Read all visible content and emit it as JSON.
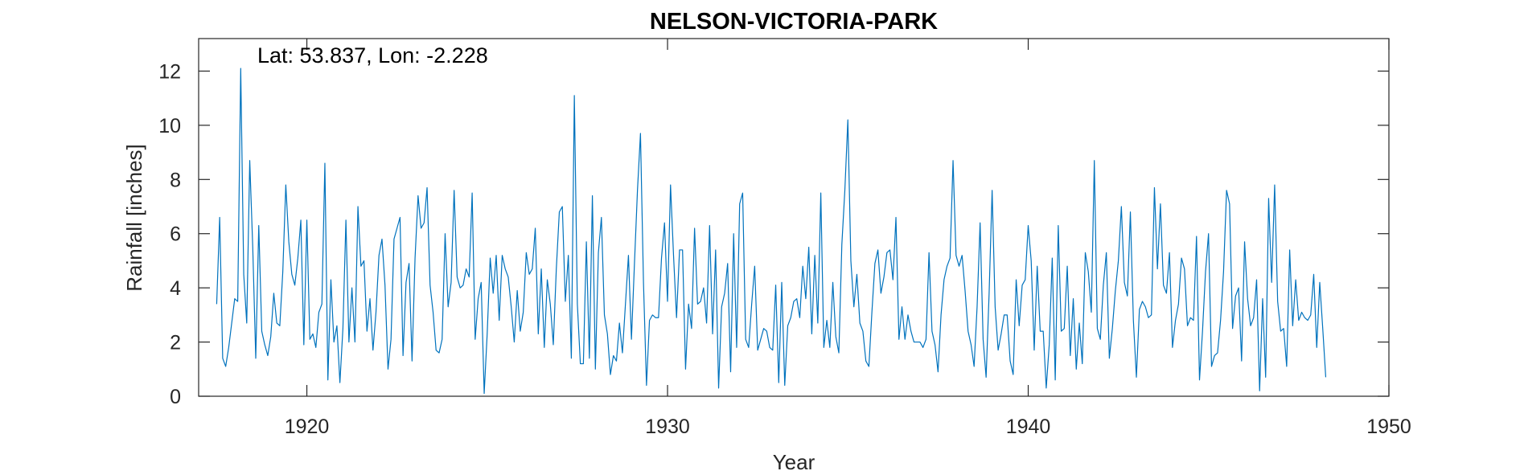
{
  "chart_data": {
    "type": "line",
    "title": "NELSON-VICTORIA-PARK",
    "annotation": "Lat: 53.837, Lon: -2.228",
    "xlabel": "Year",
    "ylabel": "Rainfall [inches]",
    "xlim": [
      1917,
      1950
    ],
    "ylim": [
      0,
      13.2
    ],
    "xticks": [
      1920,
      1930,
      1940,
      1950
    ],
    "yticks": [
      0,
      2,
      4,
      6,
      8,
      10,
      12
    ],
    "grid": false,
    "line_color": "#0072BD",
    "series": [
      {
        "x_start": 1917.5,
        "x_step": 0.08333,
        "values": [
          3.4,
          6.6,
          1.4,
          1.1,
          1.8,
          2.7,
          3.6,
          3.5,
          12.1,
          4.5,
          2.7,
          8.7,
          5.5,
          1.4,
          6.3,
          2.4,
          1.9,
          1.5,
          2.2,
          3.8,
          2.7,
          2.6,
          4.6,
          7.8,
          5.7,
          4.5,
          4.1,
          5.1,
          6.5,
          1.9,
          6.5,
          2.1,
          2.3,
          1.8,
          3.1,
          3.4,
          8.6,
          0.6,
          4.3,
          2.0,
          2.6,
          0.5,
          2.5,
          6.5,
          2.0,
          4.0,
          2.0,
          7.0,
          4.8,
          5.0,
          2.4,
          3.6,
          1.7,
          3.1,
          5.2,
          5.8,
          4.1,
          1.0,
          2.1,
          5.8,
          6.2,
          6.6,
          1.5,
          4.2,
          4.9,
          1.3,
          5.1,
          7.4,
          6.2,
          6.4,
          7.7,
          4.1,
          3.1,
          1.7,
          1.6,
          2.1,
          6.0,
          3.3,
          4.2,
          7.6,
          4.4,
          4.0,
          4.1,
          4.7,
          4.4,
          7.5,
          2.1,
          3.6,
          4.2,
          0.1,
          2.3,
          5.1,
          3.8,
          5.2,
          2.8,
          5.2,
          4.7,
          4.4,
          3.3,
          2.0,
          3.9,
          2.4,
          3.1,
          5.3,
          4.5,
          4.7,
          6.2,
          2.3,
          4.7,
          1.8,
          4.3,
          3.4,
          1.9,
          4.7,
          6.8,
          7.0,
          3.5,
          5.2,
          1.4,
          11.1,
          3.4,
          1.2,
          1.2,
          5.7,
          1.4,
          7.4,
          1.0,
          5.3,
          6.6,
          3.0,
          2.3,
          0.8,
          1.5,
          1.3,
          2.7,
          1.6,
          3.4,
          5.2,
          2.1,
          4.9,
          7.6,
          9.7,
          4.2,
          0.4,
          2.8,
          3.0,
          2.9,
          2.9,
          5.1,
          6.4,
          3.5,
          7.8,
          5.2,
          2.9,
          5.4,
          5.4,
          1.0,
          3.4,
          2.5,
          6.2,
          3.4,
          3.5,
          4.0,
          2.7,
          6.3,
          2.3,
          5.4,
          0.3,
          3.3,
          3.8,
          4.9,
          0.9,
          6.0,
          1.8,
          7.1,
          7.5,
          2.1,
          1.8,
          3.4,
          4.8,
          1.7,
          2.1,
          2.5,
          2.4,
          1.8,
          1.7,
          4.1,
          0.5,
          4.2,
          0.4,
          2.6,
          2.9,
          3.5,
          3.6,
          2.9,
          4.8,
          3.6,
          5.5,
          2.3,
          5.2,
          2.7,
          7.5,
          1.8,
          2.8,
          1.8,
          4.2,
          2.2,
          1.6,
          5.6,
          7.6,
          10.2,
          5.0,
          3.3,
          4.5,
          2.7,
          2.4,
          1.3,
          1.1,
          3.1,
          4.9,
          5.4,
          3.8,
          4.4,
          5.3,
          5.4,
          4.3,
          6.6,
          2.1,
          3.3,
          2.1,
          3.0,
          2.4,
          2.0,
          2.0,
          2.0,
          1.8,
          2.1,
          5.3,
          2.4,
          1.9,
          0.9,
          3.0,
          4.3,
          4.8,
          5.1,
          8.7,
          5.2,
          4.8,
          5.2,
          3.9,
          2.4,
          1.9,
          1.1,
          3.3,
          6.4,
          2.1,
          0.7,
          3.8,
          7.6,
          3.3,
          1.7,
          2.3,
          3.0,
          3.0,
          1.3,
          0.8,
          4.3,
          2.6,
          4.1,
          4.3,
          6.3,
          5.0,
          1.7,
          4.8,
          2.4,
          2.4,
          0.3,
          1.9,
          5.1,
          0.6,
          6.3,
          2.4,
          2.5,
          4.8,
          1.5,
          3.6,
          1.0,
          2.7,
          1.2,
          5.3,
          4.6,
          3.1,
          8.7,
          2.5,
          2.1,
          4.1,
          5.3,
          1.4,
          2.5,
          3.9,
          5.0,
          7.0,
          4.2,
          3.7,
          6.8,
          2.8,
          0.7,
          3.2,
          3.5,
          3.3,
          2.9,
          3.0,
          7.7,
          4.7,
          7.1,
          4.1,
          3.8,
          5.3,
          1.8,
          2.8,
          3.4,
          5.1,
          4.7,
          2.6,
          2.9,
          2.8,
          5.9,
          0.6,
          2.4,
          4.6,
          6.0,
          1.1,
          1.5,
          1.6,
          2.8,
          4.6,
          7.6,
          7.1,
          2.5,
          3.7,
          4.0,
          1.3,
          5.7,
          3.6,
          2.6,
          2.9,
          4.3,
          0.2,
          3.6,
          0.7,
          7.3,
          4.2,
          7.8,
          3.5,
          2.4,
          2.5,
          1.1,
          5.4,
          2.6,
          4.3,
          2.8,
          3.1,
          2.9,
          2.8,
          3.0,
          4.5,
          1.8,
          4.2,
          2.5,
          0.7
        ]
      }
    ]
  }
}
